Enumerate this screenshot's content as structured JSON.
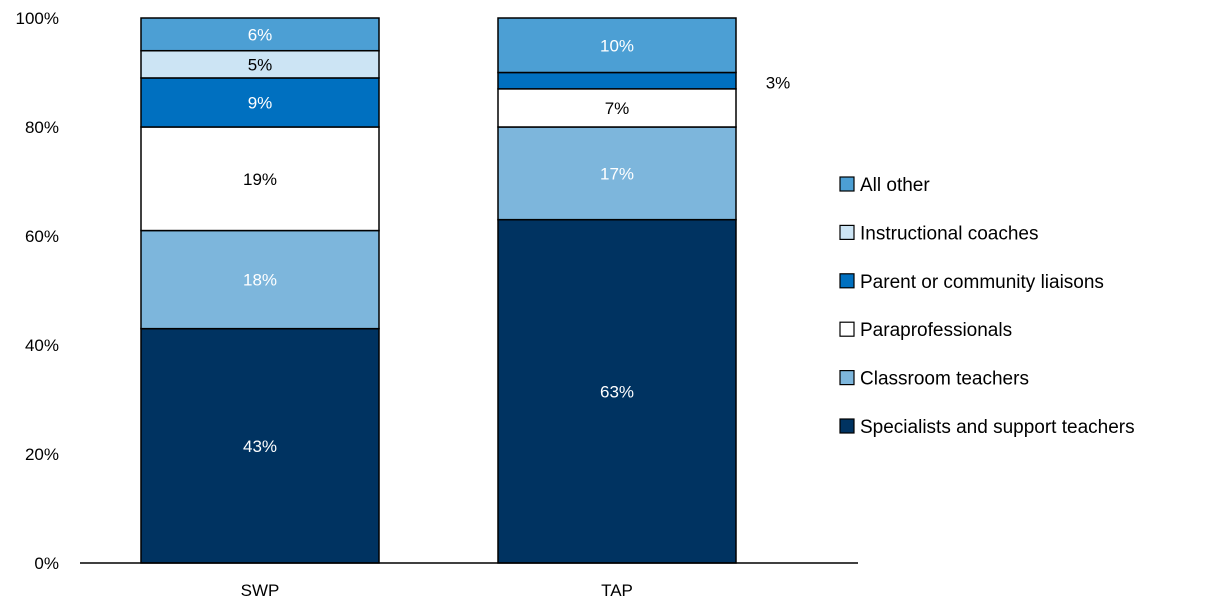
{
  "chart_data": {
    "type": "bar",
    "stacked": true,
    "categories": [
      "SWP",
      "TAP"
    ],
    "series": [
      {
        "name": "Specialists and support teachers",
        "values": [
          43,
          63
        ],
        "labels": [
          "43%",
          "63%"
        ],
        "color": "#003361",
        "label_color": "#ffffff"
      },
      {
        "name": "Classroom teachers",
        "values": [
          18,
          17
        ],
        "labels": [
          "18%",
          "17%"
        ],
        "color": "#7db6dc",
        "label_color": "#ffffff"
      },
      {
        "name": "Paraprofessionals",
        "values": [
          19,
          7
        ],
        "labels": [
          "19%",
          "7%"
        ],
        "color": "#ffffff",
        "label_color": "#000000"
      },
      {
        "name": "Parent or community liaisons",
        "values": [
          9,
          3
        ],
        "labels": [
          "9%",
          "3%"
        ],
        "color": "#0070c0",
        "label_color": "#ffffff"
      },
      {
        "name": "Instructional coaches",
        "values": [
          5,
          0
        ],
        "labels": [
          "5%",
          ""
        ],
        "color": "#cce4f4",
        "label_color": "#000000"
      },
      {
        "name": "All other",
        "values": [
          6,
          10
        ],
        "labels": [
          "6%",
          "10%"
        ],
        "color": "#4c9fd4",
        "label_color": "#ffffff"
      }
    ],
    "y_ticks": [
      "0%",
      "20%",
      "40%",
      "60%",
      "80%",
      "100%"
    ],
    "ylim": [
      0,
      100
    ],
    "legend_position": "right",
    "grid": false,
    "title": "",
    "xlabel": "",
    "ylabel": ""
  }
}
